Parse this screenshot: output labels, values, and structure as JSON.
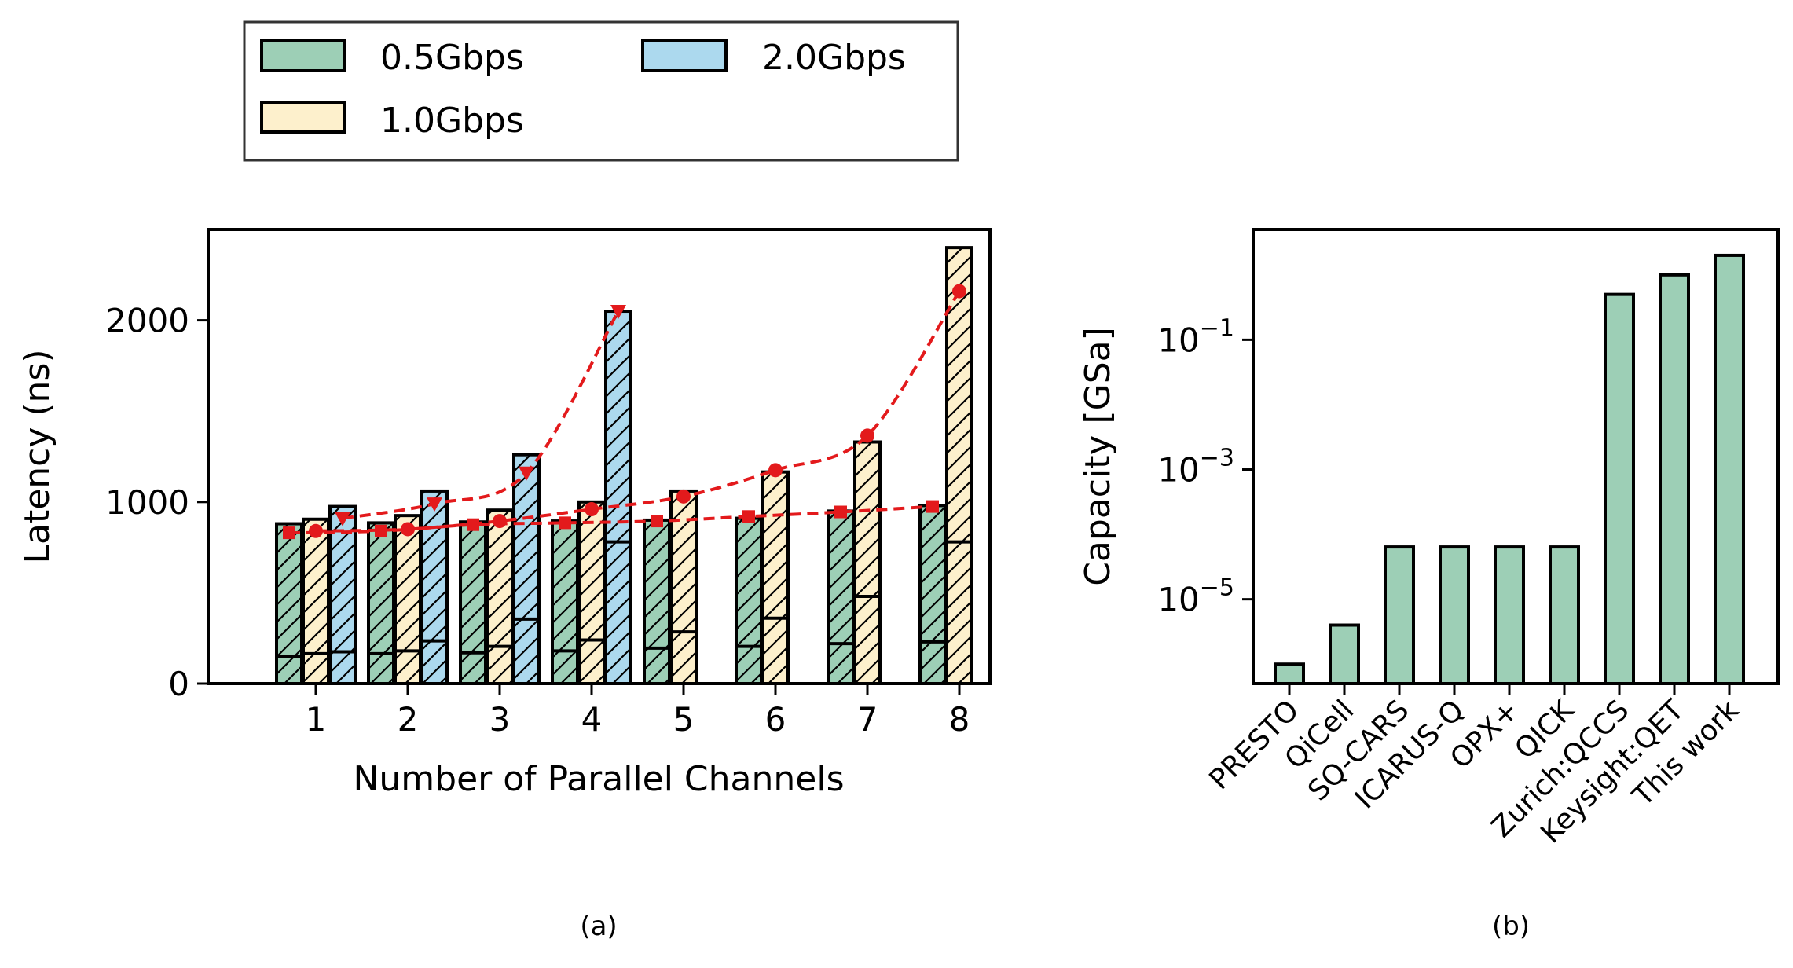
{
  "chart_data": [
    {
      "type": "bar",
      "caption": "(a)",
      "xlabel": "Number of Parallel Channels",
      "ylabel": "Latency (ns)",
      "ylim": [
        0,
        2500
      ],
      "yticks": [
        "0",
        "1000",
        "2000"
      ],
      "categories": [
        "1",
        "2",
        "3",
        "4",
        "5",
        "6",
        "7",
        "8"
      ],
      "colors": {
        "0.5Gbps": "#9dcfb6",
        "1.0Gbps": "#fdf0cc",
        "2.0Gbps": "#acd9ee",
        "trend": "#e31a1c"
      },
      "legend": [
        "0.5Gbps",
        "1.0Gbps",
        "2.0Gbps"
      ],
      "legend_position": "top",
      "series": [
        {
          "name": "0.5Gbps",
          "values": [
            880,
            885,
            890,
            895,
            900,
            910,
            950,
            980
          ],
          "base": [
            150,
            165,
            170,
            180,
            195,
            205,
            220,
            230
          ]
        },
        {
          "name": "1.0Gbps",
          "values": [
            905,
            925,
            955,
            1000,
            1060,
            1165,
            1330,
            2400
          ],
          "base": [
            165,
            180,
            205,
            240,
            285,
            360,
            480,
            780
          ]
        },
        {
          "name": "2.0Gbps",
          "values": [
            975,
            1060,
            1260,
            2050,
            null,
            null,
            null,
            null
          ],
          "base": [
            175,
            235,
            355,
            780,
            null,
            null,
            null,
            null
          ]
        }
      ],
      "trend_lines": [
        {
          "name": "0.5Gbps",
          "marker": "square",
          "values": [
            830,
            840,
            875,
            885,
            895,
            920,
            945,
            975
          ]
        },
        {
          "name": "1.0Gbps",
          "marker": "circle",
          "values": [
            840,
            850,
            895,
            960,
            1030,
            1175,
            1365,
            2160
          ]
        },
        {
          "name": "2.0Gbps",
          "marker": "triangle-down",
          "values": [
            910,
            990,
            1160,
            2050,
            null,
            null,
            null,
            null
          ]
        }
      ]
    },
    {
      "type": "bar",
      "caption": "(b)",
      "xlabel": "",
      "ylabel": "Capacity [GSa]",
      "yscale": "log",
      "ylim_log10": [
        -6.3,
        0.7
      ],
      "yticks": [
        {
          "base": "10",
          "exp": "−1",
          "log10": -1
        },
        {
          "base": "10",
          "exp": "−3",
          "log10": -3
        },
        {
          "base": "10",
          "exp": "−5",
          "log10": -5
        }
      ],
      "categories": [
        "PRESTO",
        "QiCell",
        "SQ-CARS",
        "ICARUS-Q",
        "OPX+",
        "QICK",
        "Zurich:QCCS",
        "Keysight:QET",
        "This work"
      ],
      "values": [
        1e-06,
        4e-06,
        6.4e-05,
        6.4e-05,
        6.4e-05,
        6.4e-05,
        0.5,
        1.0,
        2.0
      ],
      "color": "#9dcfb6"
    }
  ]
}
